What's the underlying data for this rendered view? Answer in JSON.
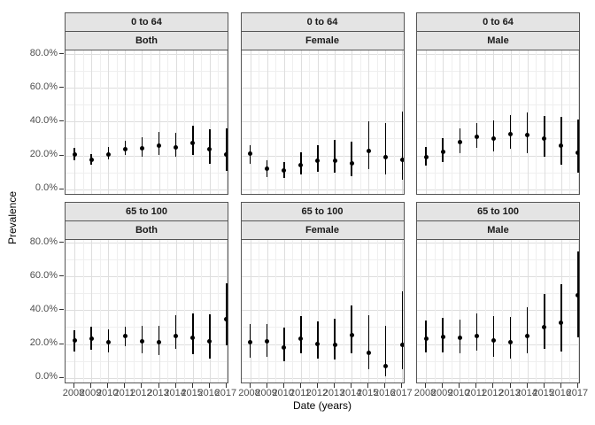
{
  "chart_data": {
    "type": "scatter",
    "subtype": "pointrange_facet_grid",
    "title": "",
    "x_label": "Date (years)",
    "y_label": "Prevalence",
    "x": [
      2008,
      2009,
      2010,
      2011,
      2012,
      2013,
      2014,
      2015,
      2016,
      2017
    ],
    "x_labels": [
      "2008",
      "2009",
      "2010",
      "2011",
      "2012",
      "2013",
      "2014",
      "2015",
      "2016",
      "2017"
    ],
    "y_tick_values": [
      0,
      20,
      40,
      60,
      80
    ],
    "y_tick_labels": [
      "0.0%",
      "20.0%",
      "40.0%",
      "60.0%",
      "80.0%"
    ],
    "ylim_pct": [
      -4,
      81
    ],
    "grid": "major_and_minor",
    "legend": "none",
    "facet_row_labels": [
      "0 to 64",
      "65 to 100"
    ],
    "facet_col_labels": [
      "Both",
      "Female",
      "Male"
    ],
    "panels": [
      {
        "age_group": "0 to 64",
        "sex": "Both",
        "mean_pct": [
          20.5,
          17.5,
          20.5,
          23.5,
          24.0,
          26.0,
          25.0,
          27.5,
          23.5,
          20.5
        ],
        "ci_low_pct": [
          17.0,
          14.5,
          17.5,
          20.0,
          19.5,
          20.5,
          19.0,
          20.0,
          15.0,
          11.0
        ],
        "ci_high_pct": [
          24.5,
          21.0,
          25.0,
          28.5,
          31.0,
          34.0,
          33.5,
          37.5,
          35.5,
          36.0
        ]
      },
      {
        "age_group": "0 to 64",
        "sex": "Female",
        "mean_pct": [
          21.0,
          12.0,
          11.0,
          14.5,
          17.0,
          17.0,
          15.5,
          22.5,
          19.0,
          17.5
        ],
        "ci_low_pct": [
          15.0,
          7.0,
          6.5,
          8.5,
          10.5,
          10.0,
          7.5,
          12.0,
          8.5,
          5.5
        ],
        "ci_high_pct": [
          26.0,
          17.0,
          16.0,
          22.0,
          26.0,
          29.0,
          28.0,
          40.0,
          39.0,
          46.0
        ]
      },
      {
        "age_group": "0 to 64",
        "sex": "Male",
        "mean_pct": [
          19.0,
          22.0,
          28.0,
          31.0,
          30.0,
          32.5,
          32.0,
          30.0,
          26.0,
          21.5
        ],
        "ci_low_pct": [
          14.0,
          16.0,
          21.5,
          24.5,
          22.5,
          24.0,
          21.5,
          19.0,
          14.5,
          9.5
        ],
        "ci_high_pct": [
          25.0,
          30.0,
          36.0,
          39.0,
          40.5,
          44.0,
          45.5,
          43.5,
          43.0,
          41.0
        ]
      },
      {
        "age_group": "65 to 100",
        "sex": "Both",
        "mean_pct": [
          22.0,
          23.0,
          21.0,
          24.5,
          21.5,
          21.0,
          25.0,
          23.5,
          21.5,
          34.5
        ],
        "ci_low_pct": [
          15.5,
          16.5,
          15.0,
          18.5,
          14.5,
          13.5,
          17.0,
          14.0,
          11.5,
          19.0
        ],
        "ci_high_pct": [
          28.0,
          30.0,
          28.5,
          30.5,
          31.0,
          31.0,
          37.0,
          38.0,
          37.5,
          56.0
        ]
      },
      {
        "age_group": "65 to 100",
        "sex": "Female",
        "mean_pct": [
          21.0,
          21.5,
          18.0,
          23.0,
          20.0,
          19.5,
          25.5,
          15.0,
          7.0,
          19.5
        ],
        "ci_low_pct": [
          12.0,
          12.5,
          10.0,
          14.5,
          11.5,
          11.0,
          14.5,
          5.0,
          1.0,
          5.0
        ],
        "ci_high_pct": [
          32.0,
          32.0,
          29.5,
          36.5,
          33.5,
          35.0,
          43.0,
          37.0,
          31.0,
          51.0
        ]
      },
      {
        "age_group": "65 to 100",
        "sex": "Male",
        "mean_pct": [
          23.0,
          24.0,
          23.5,
          25.0,
          22.0,
          21.0,
          25.0,
          30.0,
          32.5,
          49.0
        ],
        "ci_low_pct": [
          15.0,
          15.0,
          14.5,
          16.0,
          12.5,
          11.5,
          14.5,
          17.0,
          15.5,
          24.0
        ],
        "ci_high_pct": [
          34.0,
          35.5,
          34.5,
          38.0,
          36.5,
          36.0,
          42.0,
          49.5,
          55.5,
          75.0
        ]
      }
    ],
    "colors": {
      "point": "#000000",
      "error_bar": "#000000",
      "strip_background": "#e4e4e4",
      "panel_border": "#555555",
      "grid_major": "#dedede",
      "grid_minor": "#efefef",
      "tick_label": "#4d4d4d"
    }
  }
}
